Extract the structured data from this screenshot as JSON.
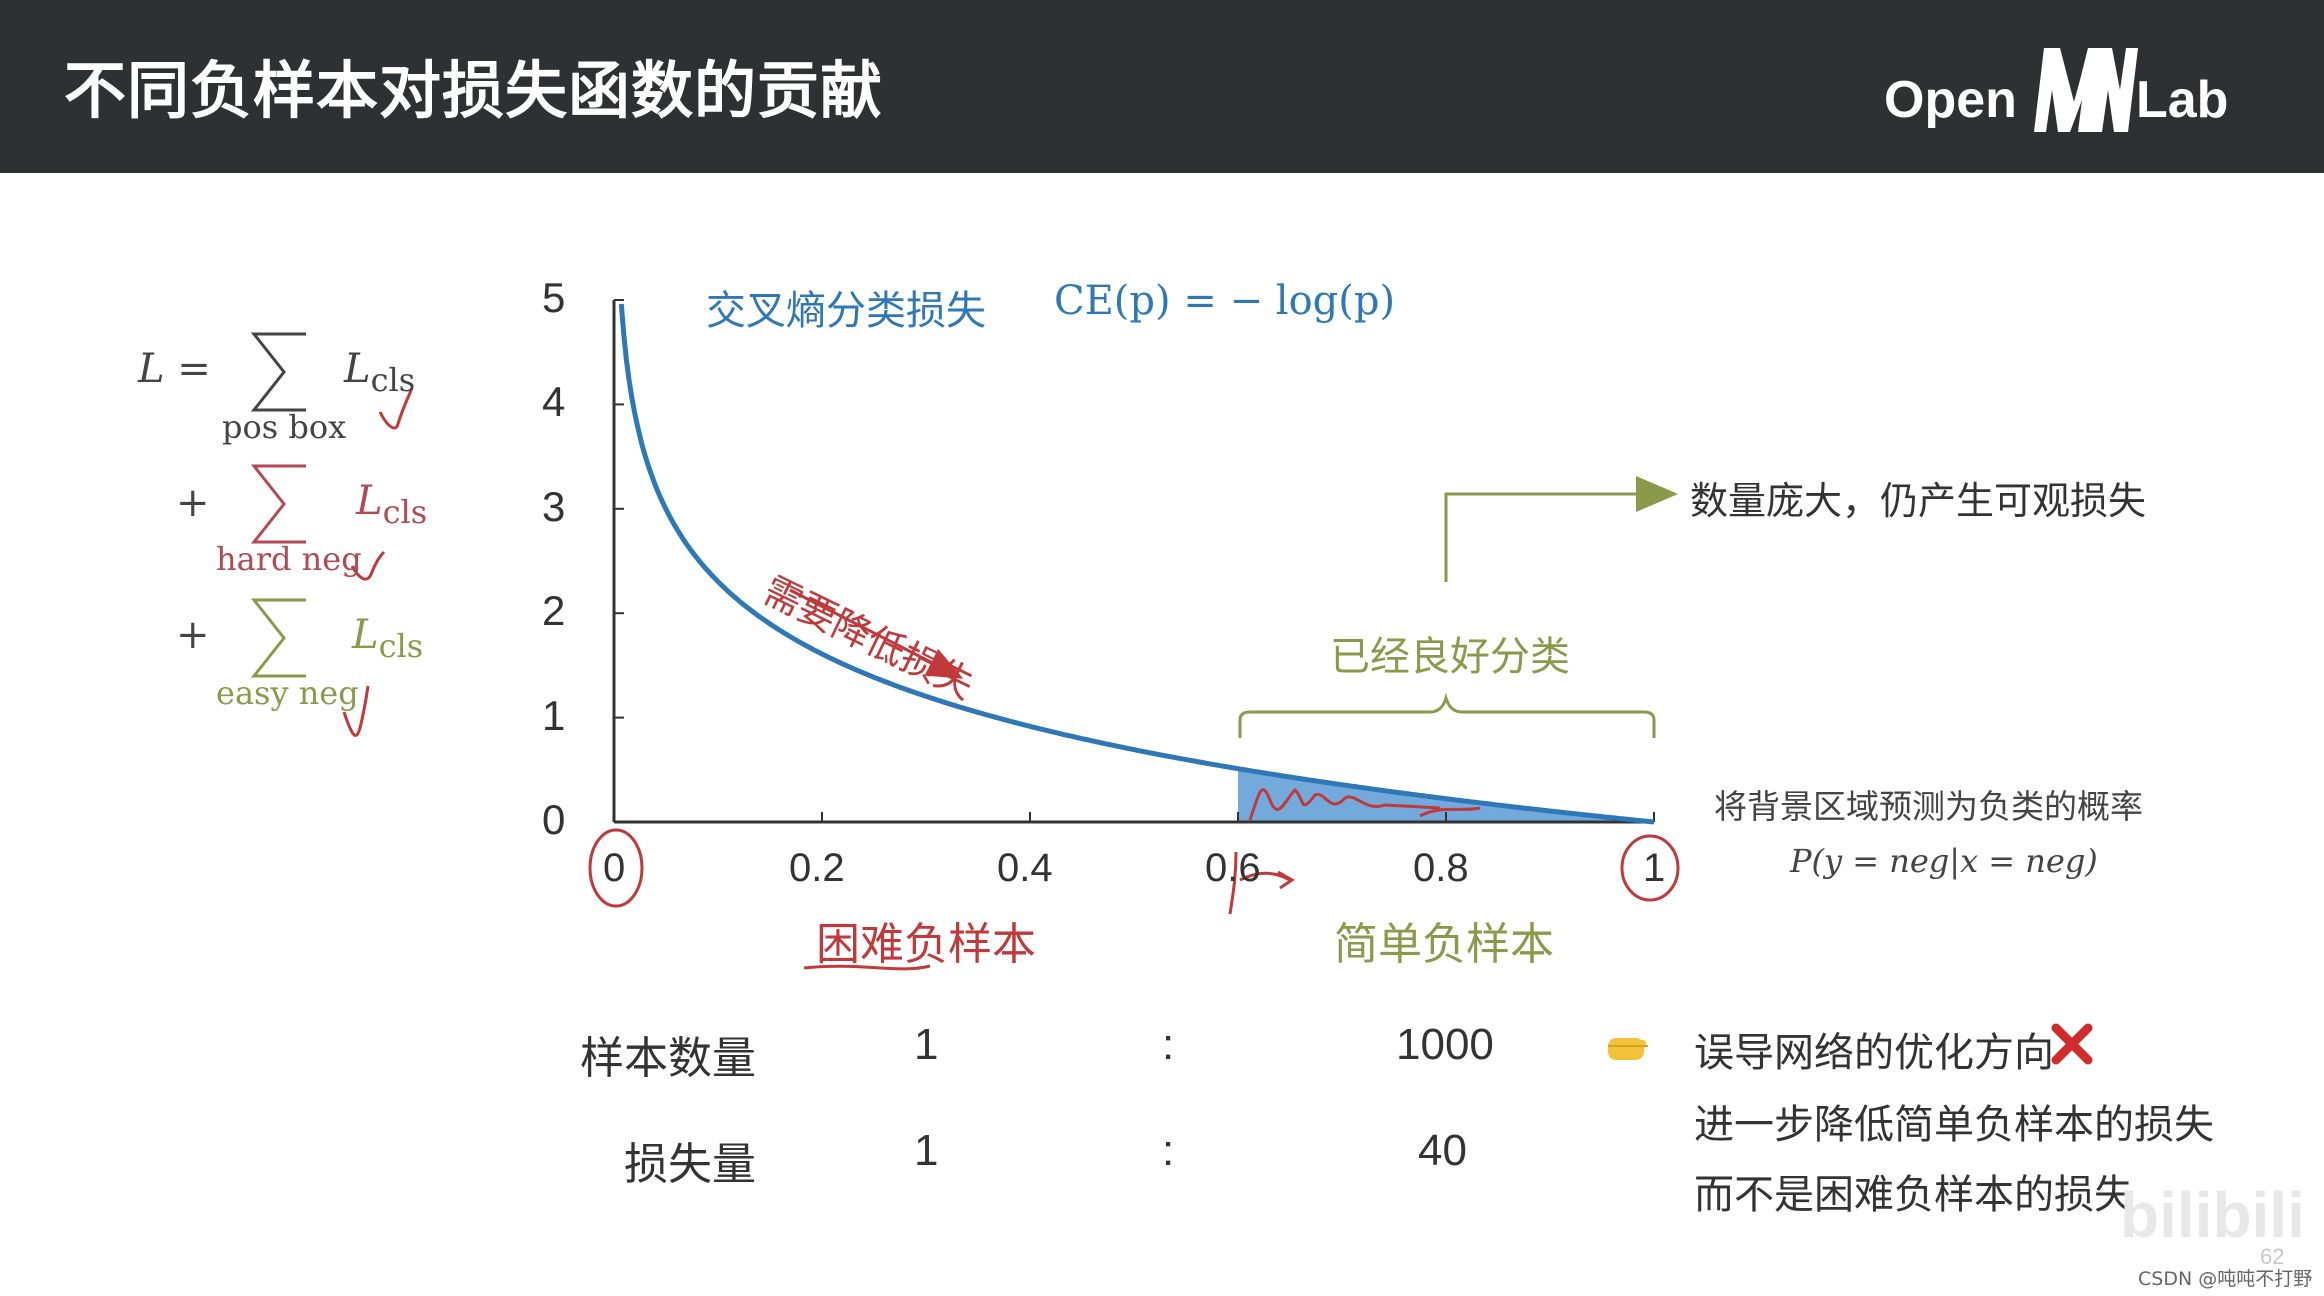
{
  "header": {
    "title": "不同负样本对损失函数的贡献",
    "logo_left": "Open",
    "logo_mid": "MM",
    "logo_right": "Lab"
  },
  "formula": {
    "lhs": "L =",
    "term": "L",
    "sub": "cls",
    "plus": "+",
    "pos_label": "pos box",
    "hard_label": "hard neg",
    "easy_label": "easy neg"
  },
  "chart_data": {
    "type": "line",
    "title": "交叉熵分类损失",
    "formula": "CE(p) = − log(p)",
    "x_ticks": [
      "0",
      "0.2",
      "0.4",
      "0.6",
      "0.8",
      "1"
    ],
    "y_ticks": [
      "0",
      "1",
      "2",
      "3",
      "4",
      "5"
    ],
    "xlim": [
      0,
      1
    ],
    "ylim": [
      0,
      5
    ],
    "series": [
      {
        "function": "-log(p)",
        "x": [
          0.007,
          0.01,
          0.02,
          0.05,
          0.1,
          0.15,
          0.2,
          0.3,
          0.4,
          0.5,
          0.6,
          0.7,
          0.8,
          0.9,
          1.0
        ],
        "y": [
          4.96,
          4.61,
          3.91,
          3.0,
          2.3,
          1.9,
          1.61,
          1.2,
          0.92,
          0.69,
          0.51,
          0.36,
          0.22,
          0.11,
          0.0
        ]
      }
    ],
    "shaded_region": [
      0.6,
      1.0
    ],
    "colors": {
      "line": "#2e78b8",
      "fill": "#5b9bd5",
      "accent_red": "#c0393b",
      "accent_green": "#8a9a4a"
    }
  },
  "annotations": {
    "reduce_loss": "需要降低损失",
    "well_classified": "已经良好分类",
    "large_count": "数量庞大，仍产生可观损失",
    "prob_desc": "将背景区域预测为负类的概率",
    "prob_formula": "P(y = neg|x = neg)",
    "hard_neg": "困难负样本",
    "easy_neg": "简单负样本"
  },
  "table": {
    "rows": [
      {
        "label": "样本数量",
        "left": "1",
        "sep": ":",
        "right": "1000"
      },
      {
        "label": "损失量",
        "left": "1",
        "sep": ":",
        "right": "40"
      }
    ]
  },
  "conclusion": {
    "line1": "误导网络的优化方向",
    "line2": "进一步降低简单负样本的损失",
    "line3": "而不是困难负样本的损失",
    "pointer_icon": "hand-pointing-icon",
    "wrong_icon": "red-x-icon"
  },
  "footer": {
    "page_number": "62",
    "watermark": "CSDN @吨吨不打野",
    "bili": "bilibili"
  }
}
